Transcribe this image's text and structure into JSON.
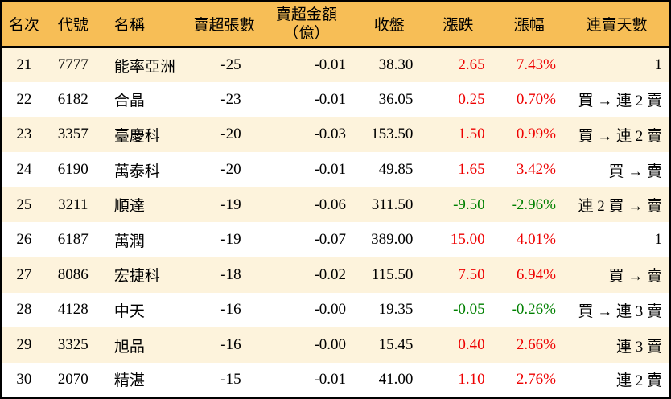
{
  "colors": {
    "header_bg": "#f7be56",
    "stripe": "#fdf3dc",
    "border": "#000000",
    "up": "#ee0000",
    "down": "#008000"
  },
  "header": {
    "rank": "名次",
    "code": "代號",
    "name": "名稱",
    "sell_volume": "賣超張數",
    "sell_amount_line1": "賣超金額",
    "sell_amount_line2": "（億）",
    "close": "收盤",
    "change": "漲跌",
    "change_pct": "漲幅",
    "streak": "連賣天數"
  },
  "chart_data": {
    "type": "table",
    "columns": [
      "名次",
      "代號",
      "名稱",
      "賣超張數",
      "賣超金額（億）",
      "收盤",
      "漲跌",
      "漲幅",
      "連賣天數"
    ],
    "rows": [
      {
        "rank": "21",
        "code": "7777",
        "name": "能率亞洲",
        "sell_volume": "-25",
        "sell_amount": "-0.01",
        "close": "38.30",
        "change": "2.65",
        "change_pct": "7.43%",
        "streak": "1",
        "trend": "up"
      },
      {
        "rank": "22",
        "code": "6182",
        "name": "合晶",
        "sell_volume": "-23",
        "sell_amount": "-0.01",
        "close": "36.05",
        "change": "0.25",
        "change_pct": "0.70%",
        "streak": "買 → 連 2 賣",
        "trend": "up"
      },
      {
        "rank": "23",
        "code": "3357",
        "name": "臺慶科",
        "sell_volume": "-20",
        "sell_amount": "-0.03",
        "close": "153.50",
        "change": "1.50",
        "change_pct": "0.99%",
        "streak": "買 → 連 2 賣",
        "trend": "up"
      },
      {
        "rank": "24",
        "code": "6190",
        "name": "萬泰科",
        "sell_volume": "-20",
        "sell_amount": "-0.01",
        "close": "49.85",
        "change": "1.65",
        "change_pct": "3.42%",
        "streak": "買 → 賣",
        "trend": "up"
      },
      {
        "rank": "25",
        "code": "3211",
        "name": "順達",
        "sell_volume": "-19",
        "sell_amount": "-0.06",
        "close": "311.50",
        "change": "-9.50",
        "change_pct": "-2.96%",
        "streak": "連 2 買 → 賣",
        "trend": "down"
      },
      {
        "rank": "26",
        "code": "6187",
        "name": "萬潤",
        "sell_volume": "-19",
        "sell_amount": "-0.07",
        "close": "389.00",
        "change": "15.00",
        "change_pct": "4.01%",
        "streak": "1",
        "trend": "up"
      },
      {
        "rank": "27",
        "code": "8086",
        "name": "宏捷科",
        "sell_volume": "-18",
        "sell_amount": "-0.02",
        "close": "115.50",
        "change": "7.50",
        "change_pct": "6.94%",
        "streak": "買 → 賣",
        "trend": "up"
      },
      {
        "rank": "28",
        "code": "4128",
        "name": "中天",
        "sell_volume": "-16",
        "sell_amount": "-0.00",
        "close": "19.35",
        "change": "-0.05",
        "change_pct": "-0.26%",
        "streak": "買 → 連 3 賣",
        "trend": "down"
      },
      {
        "rank": "29",
        "code": "3325",
        "name": "旭品",
        "sell_volume": "-16",
        "sell_amount": "-0.00",
        "close": "15.45",
        "change": "0.40",
        "change_pct": "2.66%",
        "streak": "連 3 賣",
        "trend": "up"
      },
      {
        "rank": "30",
        "code": "2070",
        "name": "精湛",
        "sell_volume": "-15",
        "sell_amount": "-0.01",
        "close": "41.00",
        "change": "1.10",
        "change_pct": "2.76%",
        "streak": "連 2 賣",
        "trend": "up"
      }
    ]
  }
}
